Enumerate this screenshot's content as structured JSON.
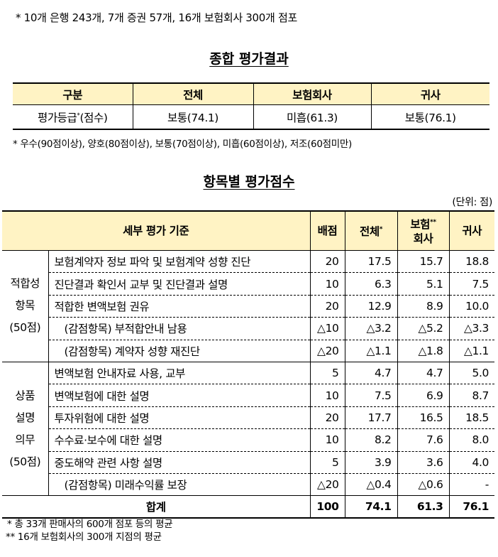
{
  "top_note": "* 10개 은행 243개, 7개 증권 57개, 16개 보험회사 300개 점포",
  "summary": {
    "title": "종합 평가결과",
    "headers": [
      "구분",
      "전체",
      "보험회사",
      "귀사"
    ],
    "row_label": "평가등급",
    "row_label_mark": "*",
    "row_label_suffix": "(점수)",
    "values": [
      "보통(74.1)",
      "미흡(61.3)",
      "보통(76.1)"
    ],
    "footnote": "* 우수(90점이상), 양호(80점이상), 보통(70점이상), 미흡(60점이상), 저조(60점미만)"
  },
  "detail": {
    "title": "항목별 평가점수",
    "unit": "(단위: 점)",
    "headers": {
      "criteria": "세부 평가 기준",
      "points": "배점",
      "total": "전체",
      "total_mark": "*",
      "insurer_line1": "보험",
      "insurer_mark": "**",
      "insurer_line2": "회사",
      "company": "귀사"
    },
    "groups": [
      {
        "label_lines": [
          "적합성",
          "항목",
          "(50점)"
        ],
        "rows": [
          {
            "criterion": "보험계약자 정보 파악 및 보험계약 성향 진단",
            "points": "20",
            "total": "17.5",
            "insurer": "15.7",
            "company": "18.8"
          },
          {
            "criterion": "진단결과 확인서 교부 및 진단결과 설명",
            "points": "10",
            "total": "6.3",
            "insurer": "5.1",
            "company": "7.5"
          },
          {
            "criterion": "적합한 변액보험 권유",
            "points": "20",
            "total": "12.9",
            "insurer": "8.9",
            "company": "10.0"
          },
          {
            "criterion": "(감점항목) 부적합안내 남용",
            "points": "△10",
            "total": "△3.2",
            "insurer": "△5.2",
            "company": "△3.3",
            "deduction": true
          },
          {
            "criterion": "(감점항목) 계약자 성향  재진단",
            "points": "△20",
            "total": "△1.1",
            "insurer": "△1.8",
            "company": "△1.1",
            "deduction": true
          }
        ]
      },
      {
        "label_lines": [
          "상품",
          "설명",
          "의무",
          "(50점)"
        ],
        "rows": [
          {
            "criterion": "변액보험 안내자료 사용, 교부",
            "points": "5",
            "total": "4.7",
            "insurer": "4.7",
            "company": "5.0"
          },
          {
            "criterion": "변액보험에 대한 설명",
            "points": "10",
            "total": "7.5",
            "insurer": "6.9",
            "company": "8.7"
          },
          {
            "criterion": "투자위험에 대한 설명",
            "points": "20",
            "total": "17.7",
            "insurer": "16.5",
            "company": "18.5"
          },
          {
            "criterion": "수수료·보수에 대한 설명",
            "points": "10",
            "total": "8.2",
            "insurer": "7.6",
            "company": "8.0"
          },
          {
            "criterion": "중도해약 관련 사항 설명",
            "points": "5",
            "total": "3.9",
            "insurer": "3.6",
            "company": "4.0"
          },
          {
            "criterion": "(감점항목) 미래수익률 보장",
            "points": "△20",
            "total": "△0.4",
            "insurer": "△0.6",
            "company": "-",
            "deduction": true
          }
        ]
      }
    ],
    "total_row": {
      "label": "합계",
      "points": "100",
      "total": "74.1",
      "insurer": "61.3",
      "company": "76.1"
    },
    "footnotes": [
      "* 총 33개 판매사의 600개 점포 등의 평균",
      "** 16개 보험회사의 300개 지점의 평균"
    ]
  }
}
